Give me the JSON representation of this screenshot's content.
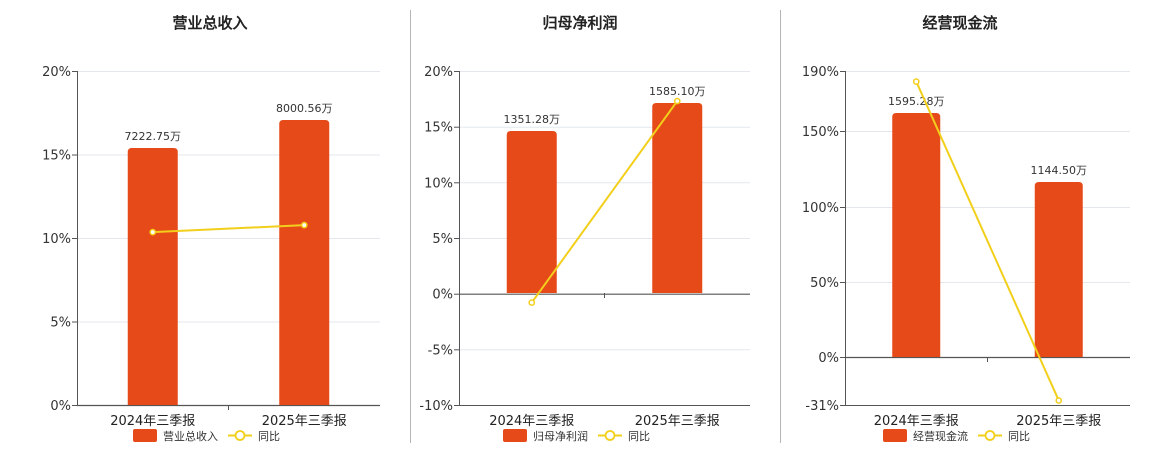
{
  "colors": {
    "bar": "#E64A19",
    "line": "#F2CF1B",
    "grid": "#E4E7EE",
    "divider": "#B5B5B5"
  },
  "chart_data": [
    {
      "type": "bar",
      "title": "营业总收入",
      "categories": [
        "2024年三季报",
        "2025年三季报"
      ],
      "bar_labels": [
        "7222.75万",
        "8000.56万"
      ],
      "series": [
        {
          "name": "营业总收入",
          "type": "bar",
          "values": [
            7222.75,
            8000.56
          ],
          "unit": "万"
        },
        {
          "name": "同比",
          "type": "line",
          "values": [
            10.35,
            10.77
          ],
          "unit": "%"
        }
      ],
      "y_ticks": [
        "20%",
        "15%",
        "10%",
        "5%",
        "0%"
      ],
      "ylim_pct": [
        0,
        20
      ]
    },
    {
      "type": "bar",
      "title": "归母净利润",
      "categories": [
        "2024年三季报",
        "2025年三季报"
      ],
      "bar_labels": [
        "1351.28万",
        "1585.10万"
      ],
      "series": [
        {
          "name": "归母净利润",
          "type": "bar",
          "values": [
            1351.28,
            1585.1
          ],
          "unit": "万"
        },
        {
          "name": "同比",
          "type": "line",
          "values": [
            -0.8,
            17.3
          ],
          "unit": "%"
        }
      ],
      "y_ticks": [
        "20%",
        "15%",
        "10%",
        "5%",
        "0%",
        "-5%",
        "-10%"
      ],
      "ylim_pct": [
        -10,
        20
      ]
    },
    {
      "type": "bar",
      "title": "经营现金流",
      "categories": [
        "2024年三季报",
        "2025年三季报"
      ],
      "bar_labels": [
        "1595.28万",
        "1144.50万"
      ],
      "series": [
        {
          "name": "经营现金流",
          "type": "bar",
          "values": [
            1595.28,
            1144.5
          ],
          "unit": "万"
        },
        {
          "name": "同比",
          "type": "line",
          "values": [
            183,
            -28
          ],
          "unit": "%"
        }
      ],
      "y_ticks": [
        "190%",
        "150%",
        "100%",
        "50%",
        "0%",
        "-31%"
      ],
      "ylim_pct": [
        -31,
        190
      ]
    }
  ]
}
